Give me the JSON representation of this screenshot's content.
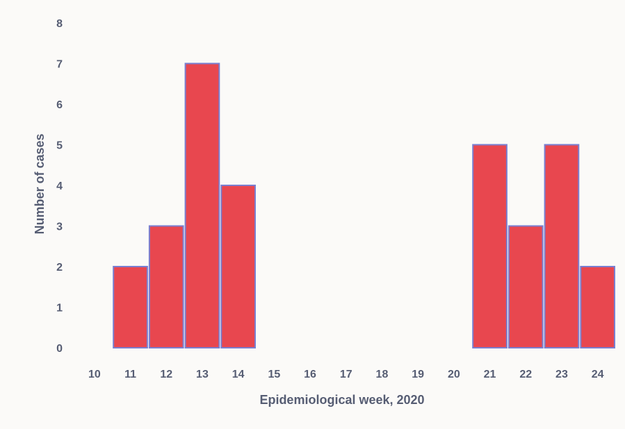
{
  "chart_data": {
    "type": "bar",
    "title": "",
    "xlabel": "Epidemiological week, 2020",
    "ylabel": "Number of cases",
    "categories": [
      "10",
      "11",
      "12",
      "13",
      "14",
      "15",
      "16",
      "17",
      "18",
      "19",
      "20",
      "21",
      "22",
      "23",
      "24"
    ],
    "values": [
      0,
      2,
      3,
      7,
      4,
      0,
      0,
      0,
      0,
      0,
      0,
      5,
      3,
      5,
      2
    ],
    "ylim": [
      0,
      8
    ],
    "yticks": [
      "0",
      "1",
      "2",
      "3",
      "4",
      "5",
      "6",
      "7",
      "8"
    ],
    "grid": false,
    "legend": "none",
    "bar_color": "#e8474f",
    "bar_edge_color": "#7a7fd0",
    "text_color": "#565d73"
  }
}
